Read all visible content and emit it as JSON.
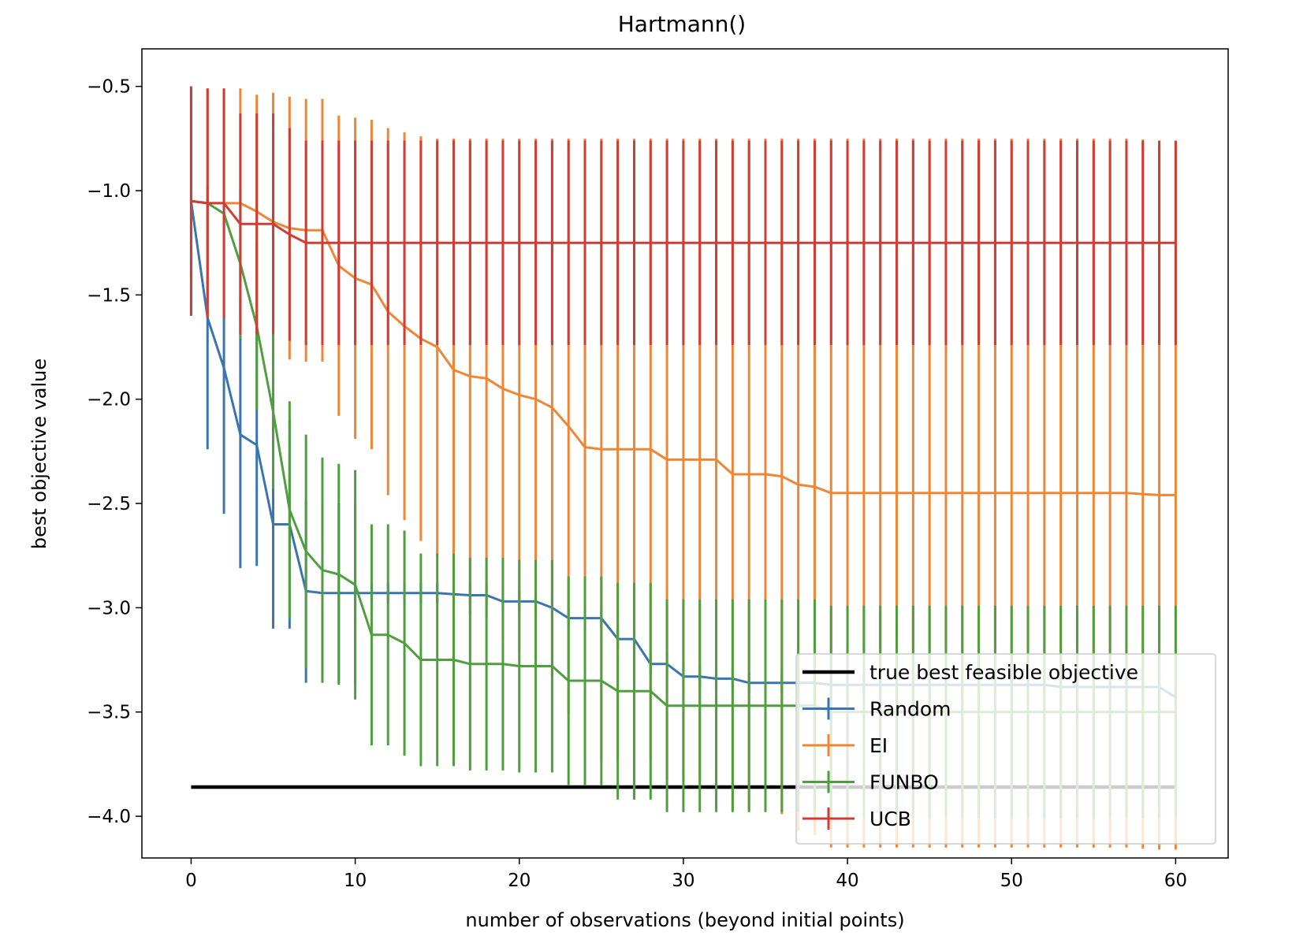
{
  "chart_data": {
    "type": "line",
    "title": "Hartmann()",
    "xlabel": "number of observations (beyond initial points)",
    "ylabel": "best objective value",
    "xlim": [
      -3,
      63.2
    ],
    "ylim": [
      -4.2,
      -0.32
    ],
    "xticks": [
      0,
      10,
      20,
      30,
      40,
      50,
      60
    ],
    "xtick_labels": [
      "0",
      "10",
      "20",
      "30",
      "40",
      "50",
      "60"
    ],
    "yticks": [
      -0.5,
      -1.0,
      -1.5,
      -2.0,
      -2.5,
      -3.0,
      -3.5,
      -4.0
    ],
    "ytick_labels": [
      "−0.5",
      "−1.0",
      "−1.5",
      "−2.0",
      "−2.5",
      "−3.0",
      "−3.5",
      "−4.0"
    ],
    "grid": false,
    "legend_position": "lower right",
    "reference_line": {
      "name": "true best feasible objective",
      "value": -3.86,
      "color": "#000000"
    },
    "series": [
      {
        "name": "Random",
        "color": "#3a75af",
        "values": [
          -1.05,
          -1.61,
          -1.85,
          -2.17,
          -2.22,
          -2.6,
          -2.6,
          -2.92,
          -2.93,
          -2.93,
          -2.93,
          -2.93,
          -2.93,
          -2.93,
          -2.93,
          -2.93,
          -2.935,
          -2.94,
          -2.94,
          -2.97,
          -2.97,
          -2.97,
          -3.0,
          -3.05,
          -3.05,
          -3.05,
          -3.15,
          -3.15,
          -3.27,
          -3.27,
          -3.33,
          -3.33,
          -3.34,
          -3.34,
          -3.36,
          -3.36,
          -3.36,
          -3.36,
          -3.36,
          -3.37,
          -3.37,
          -3.37,
          -3.37,
          -3.37,
          -3.37,
          -3.37,
          -3.37,
          -3.37,
          -3.37,
          -3.37,
          -3.37,
          -3.37,
          -3.37,
          -3.38,
          -3.38,
          -3.38,
          -3.38,
          -3.38,
          -3.38,
          -3.38,
          -3.43
        ],
        "errors": [
          0.55,
          0.63,
          0.7,
          0.64,
          0.58,
          0.5,
          0.5,
          0.44,
          0.43,
          0.43,
          0.43,
          0.05,
          0.05,
          0.05,
          0.05,
          0.05,
          0.05,
          0.05,
          0.05,
          0.05,
          0.05,
          0.05,
          0.05,
          0.05,
          0.05,
          0.05,
          0.05,
          0.05,
          0.05,
          0.05,
          0.05,
          0.05,
          0.05,
          0.05,
          0.05,
          0.05,
          0.05,
          0.05,
          0.05,
          0.05,
          0.05,
          0.05,
          0.05,
          0.05,
          0.05,
          0.05,
          0.05,
          0.05,
          0.05,
          0.05,
          0.05,
          0.05,
          0.05,
          0.05,
          0.05,
          0.05,
          0.05,
          0.05,
          0.05,
          0.05,
          0.05
        ]
      },
      {
        "name": "EI",
        "color": "#ef8636",
        "values": [
          -1.05,
          -1.06,
          -1.06,
          -1.06,
          -1.1,
          -1.15,
          -1.18,
          -1.19,
          -1.19,
          -1.36,
          -1.42,
          -1.45,
          -1.58,
          -1.65,
          -1.71,
          -1.75,
          -1.86,
          -1.89,
          -1.9,
          -1.95,
          -1.98,
          -2.0,
          -2.04,
          -2.13,
          -2.23,
          -2.24,
          -2.24,
          -2.24,
          -2.24,
          -2.29,
          -2.29,
          -2.29,
          -2.29,
          -2.36,
          -2.36,
          -2.36,
          -2.37,
          -2.41,
          -2.42,
          -2.45,
          -2.45,
          -2.45,
          -2.45,
          -2.45,
          -2.45,
          -2.45,
          -2.45,
          -2.45,
          -2.45,
          -2.45,
          -2.45,
          -2.45,
          -2.45,
          -2.45,
          -2.45,
          -2.45,
          -2.45,
          -2.45,
          -2.455,
          -2.46,
          -2.46
        ],
        "errors": [
          0.55,
          0.55,
          0.55,
          0.55,
          0.56,
          0.62,
          0.63,
          0.63,
          0.63,
          0.72,
          0.77,
          0.79,
          0.88,
          0.93,
          0.97,
          1.0,
          1.11,
          1.14,
          1.15,
          1.2,
          1.23,
          1.25,
          1.29,
          1.38,
          1.48,
          1.49,
          1.49,
          1.49,
          1.49,
          1.54,
          1.54,
          1.54,
          1.54,
          1.61,
          1.61,
          1.61,
          1.62,
          1.66,
          1.67,
          1.7,
          1.7,
          1.7,
          1.7,
          1.7,
          1.7,
          1.7,
          1.7,
          1.7,
          1.7,
          1.7,
          1.7,
          1.7,
          1.7,
          1.7,
          1.7,
          1.7,
          1.7,
          1.7,
          1.7,
          1.7,
          1.7
        ]
      },
      {
        "name": "FUNBO",
        "color": "#4f9e3f",
        "values": [
          -1.05,
          -1.06,
          -1.11,
          -1.35,
          -1.65,
          -2.06,
          -2.53,
          -2.73,
          -2.82,
          -2.84,
          -2.89,
          -3.13,
          -3.13,
          -3.17,
          -3.25,
          -3.25,
          -3.25,
          -3.27,
          -3.27,
          -3.27,
          -3.28,
          -3.28,
          -3.28,
          -3.35,
          -3.35,
          -3.35,
          -3.4,
          -3.4,
          -3.4,
          -3.47,
          -3.47,
          -3.47,
          -3.47,
          -3.47,
          -3.47,
          -3.47,
          -3.47,
          -3.47,
          -3.47,
          -3.5,
          -3.5,
          -3.5,
          -3.5,
          -3.5,
          -3.5,
          -3.5,
          -3.5,
          -3.5,
          -3.5,
          -3.5,
          -3.5,
          -3.5,
          -3.5,
          -3.5,
          -3.5,
          -3.5,
          -3.5,
          -3.5,
          -3.5,
          -3.5,
          -3.5
        ],
        "errors": [
          0.01,
          0.02,
          0.05,
          0.36,
          0.4,
          0.37,
          0.52,
          0.56,
          0.54,
          0.53,
          0.55,
          0.53,
          0.53,
          0.54,
          0.51,
          0.51,
          0.51,
          0.51,
          0.51,
          0.51,
          0.51,
          0.51,
          0.51,
          0.5,
          0.5,
          0.5,
          0.52,
          0.52,
          0.52,
          0.51,
          0.51,
          0.51,
          0.51,
          0.51,
          0.51,
          0.51,
          0.51,
          0.51,
          0.51,
          0.51,
          0.51,
          0.51,
          0.51,
          0.51,
          0.51,
          0.51,
          0.51,
          0.51,
          0.51,
          0.51,
          0.51,
          0.51,
          0.51,
          0.51,
          0.51,
          0.51,
          0.51,
          0.51,
          0.51,
          0.51,
          0.51
        ]
      },
      {
        "name": "UCB",
        "color": "#d03c36",
        "values": [
          -1.05,
          -1.06,
          -1.06,
          -1.16,
          -1.16,
          -1.16,
          -1.21,
          -1.25,
          -1.25,
          -1.25,
          -1.25,
          -1.25,
          -1.25,
          -1.25,
          -1.25,
          -1.25,
          -1.25,
          -1.25,
          -1.25,
          -1.25,
          -1.25,
          -1.25,
          -1.25,
          -1.25,
          -1.25,
          -1.25,
          -1.25,
          -1.25,
          -1.25,
          -1.25,
          -1.25,
          -1.25,
          -1.25,
          -1.25,
          -1.25,
          -1.25,
          -1.25,
          -1.25,
          -1.25,
          -1.25,
          -1.25,
          -1.25,
          -1.25,
          -1.25,
          -1.25,
          -1.25,
          -1.25,
          -1.25,
          -1.25,
          -1.25,
          -1.25,
          -1.25,
          -1.25,
          -1.25,
          -1.25,
          -1.25,
          -1.25,
          -1.25,
          -1.25,
          -1.25,
          -1.25
        ],
        "errors": [
          0.55,
          0.55,
          0.55,
          0.53,
          0.53,
          0.53,
          0.51,
          0.49,
          0.49,
          0.49,
          0.49,
          0.49,
          0.49,
          0.49,
          0.49,
          0.49,
          0.49,
          0.49,
          0.49,
          0.49,
          0.49,
          0.49,
          0.49,
          0.49,
          0.49,
          0.49,
          0.49,
          0.49,
          0.49,
          0.49,
          0.49,
          0.49,
          0.49,
          0.49,
          0.49,
          0.49,
          0.49,
          0.49,
          0.49,
          0.49,
          0.49,
          0.49,
          0.49,
          0.49,
          0.49,
          0.49,
          0.49,
          0.49,
          0.49,
          0.49,
          0.49,
          0.49,
          0.49,
          0.49,
          0.49,
          0.49,
          0.49,
          0.49,
          0.49,
          0.49,
          0.49
        ]
      }
    ]
  }
}
